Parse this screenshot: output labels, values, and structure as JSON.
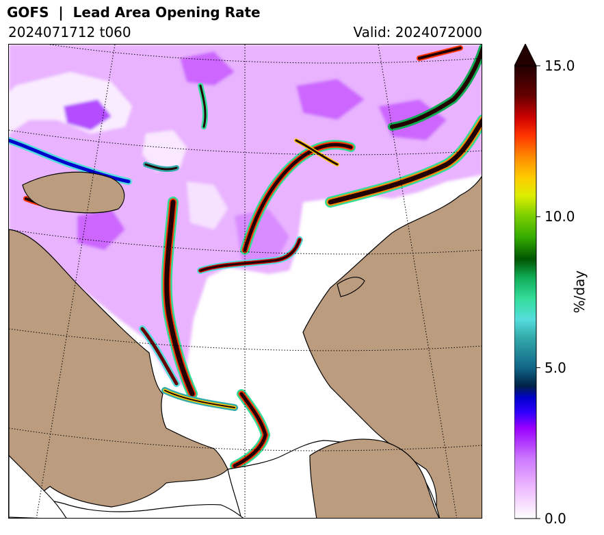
{
  "header": {
    "title": "GOFS  |  Lead Area Opening Rate",
    "init_label": "2024071712 t060",
    "valid_label": "Valid: 2024072000"
  },
  "colorbar": {
    "label": "%/day",
    "min": 0.0,
    "max": 15.0,
    "extend": "max",
    "ticks": [
      {
        "value": 0.0,
        "label": "0.0"
      },
      {
        "value": 5.0,
        "label": "5.0"
      },
      {
        "value": 10.0,
        "label": "10.0"
      },
      {
        "value": 15.0,
        "label": "15.0"
      }
    ],
    "stops": [
      {
        "v": 0.0,
        "color": "#ffffff"
      },
      {
        "v": 1.0,
        "color": "#eebbff"
      },
      {
        "v": 2.0,
        "color": "#cc77ff"
      },
      {
        "v": 3.0,
        "color": "#9900ff"
      },
      {
        "v": 3.5,
        "color": "#3300ff"
      },
      {
        "v": 4.0,
        "color": "#0000cc"
      },
      {
        "v": 4.4,
        "color": "#002244"
      },
      {
        "v": 5.0,
        "color": "#116688"
      },
      {
        "v": 6.0,
        "color": "#33aaaa"
      },
      {
        "v": 6.6,
        "color": "#55dddd"
      },
      {
        "v": 7.3,
        "color": "#33dd99"
      },
      {
        "v": 8.0,
        "color": "#11aa55"
      },
      {
        "v": 8.6,
        "color": "#005500"
      },
      {
        "v": 9.3,
        "color": "#33aa00"
      },
      {
        "v": 10.0,
        "color": "#77cc00"
      },
      {
        "v": 10.7,
        "color": "#ddee00"
      },
      {
        "v": 11.3,
        "color": "#ffcc00"
      },
      {
        "v": 12.0,
        "color": "#ff8800"
      },
      {
        "v": 12.7,
        "color": "#ff3300"
      },
      {
        "v": 13.3,
        "color": "#cc0000"
      },
      {
        "v": 14.0,
        "color": "#660000"
      },
      {
        "v": 15.0,
        "color": "#220000"
      }
    ]
  },
  "map": {
    "land_color": "#bc9c7e",
    "ocean_color": "#ffffff",
    "coastline_color": "#000000",
    "graticule_style": "dotted"
  }
}
